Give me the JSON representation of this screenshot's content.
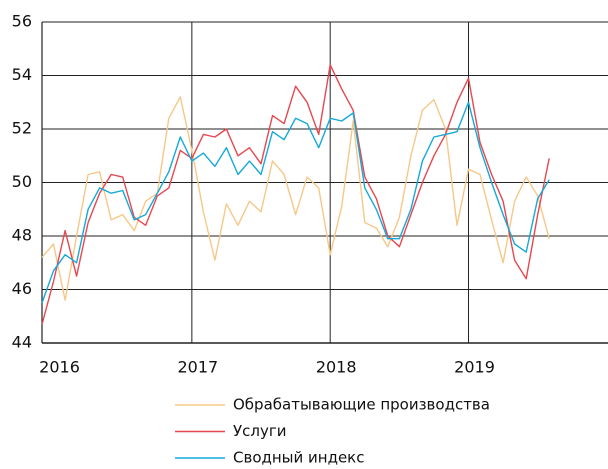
{
  "chart_data": {
    "type": "line",
    "x": [
      0,
      1,
      2,
      3,
      4,
      5,
      6,
      7,
      8,
      9,
      10,
      11,
      12,
      13,
      14,
      15,
      16,
      17,
      18,
      19,
      20,
      21,
      22,
      23,
      24,
      25,
      26,
      27,
      28,
      29,
      30,
      31,
      32,
      33,
      34,
      35,
      36,
      37,
      38,
      39,
      40,
      41,
      42,
      43,
      44
    ],
    "series": [
      {
        "name": "Обрабатывающие производства",
        "color": "#f6c888",
        "values": [
          47.2,
          47.7,
          45.6,
          48.0,
          50.3,
          50.4,
          48.6,
          48.8,
          48.2,
          49.3,
          49.6,
          52.4,
          53.2,
          51.2,
          48.9,
          47.1,
          49.2,
          48.4,
          49.3,
          48.9,
          50.8,
          50.3,
          48.8,
          50.2,
          49.8,
          47.3,
          49.1,
          52.3,
          48.5,
          48.3,
          47.6,
          48.7,
          51.0,
          52.7,
          53.1,
          52.0,
          48.4,
          50.5,
          50.3,
          48.6,
          47.0,
          49.3,
          50.2,
          49.5,
          47.9
        ]
      },
      {
        "name": "Услуги",
        "color": "#e8474f",
        "values": [
          44.7,
          46.3,
          48.2,
          46.5,
          48.5,
          49.6,
          50.3,
          50.2,
          48.7,
          48.4,
          49.5,
          49.8,
          51.2,
          50.9,
          51.8,
          51.7,
          52.0,
          51.0,
          51.3,
          50.7,
          52.5,
          52.2,
          53.6,
          53.0,
          51.8,
          54.4,
          53.5,
          52.7,
          50.2,
          49.4,
          48.0,
          47.6,
          48.8,
          50.0,
          51.0,
          51.8,
          53.0,
          53.9,
          51.5,
          50.3,
          49.3,
          47.1,
          46.4,
          48.8,
          50.9
        ]
      },
      {
        "name": "Сводный индекс",
        "color": "#14a9d9",
        "values": [
          45.5,
          46.7,
          47.3,
          47.0,
          49.0,
          49.8,
          49.6,
          49.7,
          48.6,
          48.8,
          49.6,
          50.4,
          51.7,
          50.8,
          51.1,
          50.6,
          51.3,
          50.3,
          50.8,
          50.3,
          51.9,
          51.6,
          52.4,
          52.2,
          51.3,
          52.4,
          52.3,
          52.6,
          49.8,
          49.0,
          47.9,
          47.9,
          49.0,
          50.8,
          51.7,
          51.8,
          51.9,
          53.0,
          51.3,
          50.0,
          48.8,
          47.7,
          47.4,
          49.4,
          50.1
        ]
      }
    ],
    "xlim": [
      0,
      49.1
    ],
    "xticks": [
      {
        "value": 1,
        "label": "2016"
      },
      {
        "value": 13,
        "label": "2017"
      },
      {
        "value": 25,
        "label": "2018"
      },
      {
        "value": 37,
        "label": "2019"
      }
    ],
    "ylim": [
      44,
      56
    ],
    "yticks": [
      44,
      46,
      48,
      50,
      52,
      54,
      56
    ],
    "grid": true,
    "legend": "bottom"
  }
}
